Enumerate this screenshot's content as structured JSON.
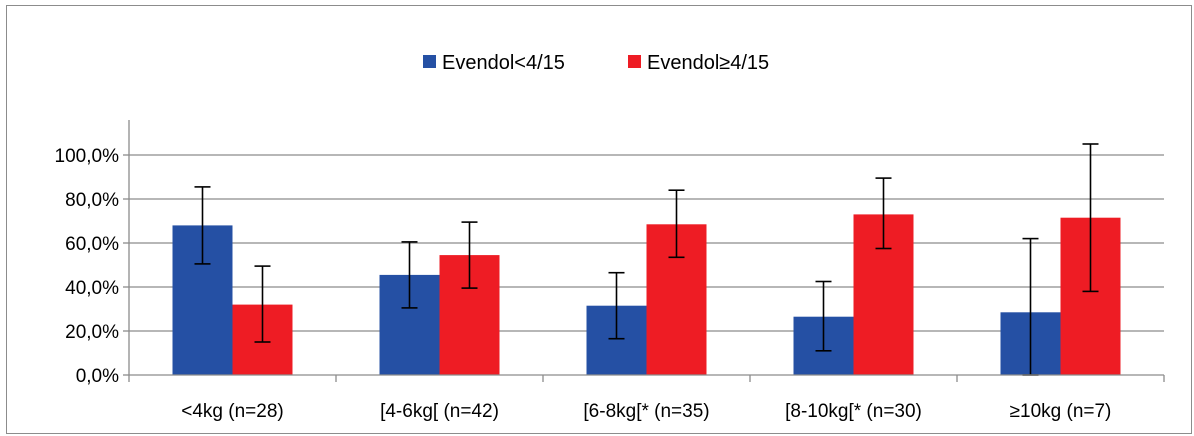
{
  "chart_data": {
    "type": "bar",
    "categories": [
      "<4kg (n=28)",
      "[4-6kg[ (n=42)",
      "[6-8kg[* (n=35)",
      "[8-10kg[* (n=30)",
      "≥10kg (n=7)"
    ],
    "series": [
      {
        "name": "Evendol<4/15",
        "color": "#2550a4",
        "values": [
          68.0,
          45.5,
          31.5,
          26.5,
          28.5
        ],
        "error_upper": [
          85.5,
          60.5,
          46.5,
          42.5,
          62.0
        ],
        "error_lower": [
          50.5,
          30.5,
          16.5,
          11.0,
          0.0
        ]
      },
      {
        "name": "Evendol≥4/15",
        "color": "#ee1c24",
        "values": [
          32.0,
          54.5,
          68.5,
          73.0,
          71.5
        ],
        "error_upper": [
          49.5,
          69.5,
          84.0,
          89.5,
          105.0
        ],
        "error_lower": [
          15.0,
          39.5,
          53.5,
          57.5,
          38.0
        ]
      }
    ],
    "ylim": [
      0,
      100
    ],
    "yticks": [
      "0,0%",
      "20,0%",
      "40,0%",
      "60,0%",
      "80,0%",
      "100,0%"
    ],
    "grid": true,
    "legend_position": "top-center",
    "title": "",
    "xlabel": "",
    "ylabel": ""
  }
}
